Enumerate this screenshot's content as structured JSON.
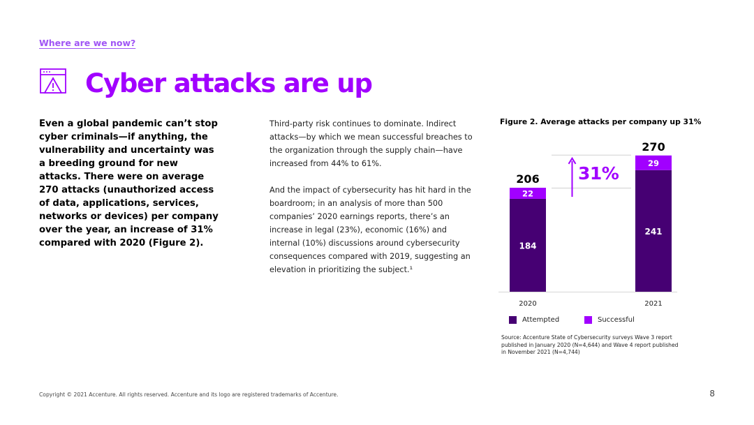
{
  "header": {
    "section_link": "Where are we now?",
    "title": "Cyber attacks are up",
    "icon": "browser-warning-icon"
  },
  "lead_text": "Even a global pandemic can’t stop cyber criminals—if anything, the vulnerability and uncertainty was a breeding ground for new attacks. There were on average 270 attacks (unauthorized access of data, applications, services, networks or devices) per company over the year, an increase of 31% compared with 2020 (Figure 2).",
  "body": {
    "paragraph_1": "Third-party risk continues to dominate. Indirect attacks—by which we mean successful breaches to the organization through the supply chain—have increased from 44% to 61%.",
    "paragraph_2": "And the impact of cybersecurity has hit hard in the boardroom; in an analysis of more than 500 companies’ 2020 earnings reports, there’s an increase in legal (23%), economic (16%) and internal (10%) discussions around cybersecurity consequences compared with 2019, suggesting an elevation in prioritizing the subject.¹"
  },
  "figure": {
    "title": "Figure 2. Average attacks per company up 31%",
    "source": "Source: Accenture State of Cybersecurity surveys Wave 3 report published in January 2020 (N=4,644) and Wave 4 report published in November 2021 (N=4,744)"
  },
  "chart_data": {
    "type": "bar",
    "stacked": true,
    "categories": [
      "2020",
      "2021"
    ],
    "series": [
      {
        "name": "Attempted",
        "values": [
          184,
          241
        ],
        "color": "#460073"
      },
      {
        "name": "Successful",
        "values": [
          22,
          29
        ],
        "color": "#a100ff"
      }
    ],
    "totals": [
      206,
      270
    ],
    "increase_label": "31%",
    "increase_color": "#a100ff",
    "legend_position": "bottom-left",
    "grid": false
  },
  "footer": {
    "copyright": "Copyright © 2021 Accenture. All rights reserved. Accenture and its logo are registered trademarks of Accenture.",
    "page_number": "8"
  }
}
